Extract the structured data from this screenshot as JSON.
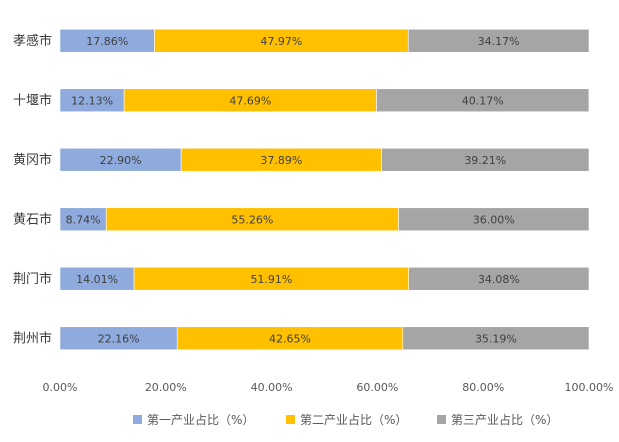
{
  "chart_data": {
    "type": "bar",
    "orientation": "horizontal",
    "stacked": true,
    "categories": [
      "孝感市",
      "十堰市",
      "黄冈市",
      "黄石市",
      "荆门市",
      "荆州市"
    ],
    "series": [
      {
        "name": "第一产业占比（%）",
        "color": "#8faadc",
        "values": [
          17.86,
          12.13,
          22.9,
          8.74,
          14.01,
          22.16
        ],
        "labels": [
          "17.86%",
          "12.13%",
          "22.90%",
          "8.74%",
          "14.01%",
          "22.16%"
        ]
      },
      {
        "name": "第二产业占比（%）",
        "color": "#ffc000",
        "values": [
          47.97,
          47.69,
          37.89,
          55.26,
          51.91,
          42.65
        ],
        "labels": [
          "47.97%",
          "47.69%",
          "37.89%",
          "55.26%",
          "51.91%",
          "42.65%"
        ]
      },
      {
        "name": "第三产业占比（%）",
        "color": "#a5a5a5",
        "values": [
          34.17,
          40.17,
          39.21,
          36.0,
          34.08,
          35.19
        ],
        "labels": [
          "34.17%",
          "40.17%",
          "39.21%",
          "36.00%",
          "34.08%",
          "35.19%"
        ]
      }
    ],
    "xlim": [
      0,
      100
    ],
    "x_ticks": [
      0,
      20,
      40,
      60,
      80,
      100
    ],
    "x_tick_labels": [
      "0.00%",
      "20.00%",
      "40.00%",
      "60.00%",
      "80.00%",
      "100.00%"
    ],
    "title": "",
    "xlabel": "",
    "ylabel": "",
    "grid": false,
    "legend_position": "bottom"
  }
}
